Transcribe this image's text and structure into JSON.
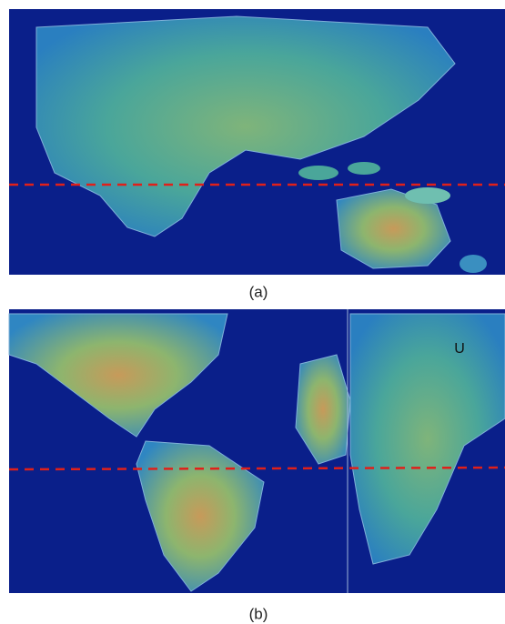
{
  "panels": [
    {
      "label": "(a)"
    },
    {
      "label": "(b)",
      "annotation": "U"
    }
  ]
}
